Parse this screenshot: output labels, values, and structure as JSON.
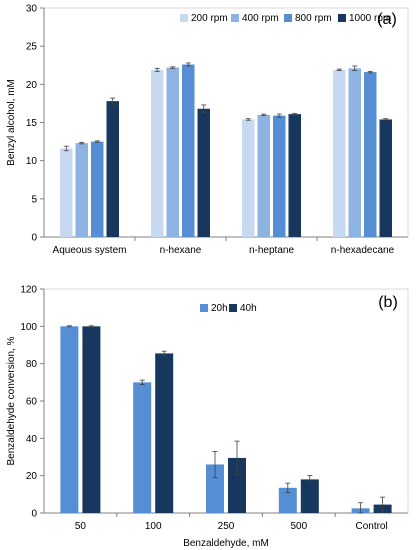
{
  "chart_data": [
    {
      "type": "bar",
      "panel_label": "(a)",
      "ylabel": "Benzyl alcohol, mM",
      "xlabel": "",
      "ylim": [
        0,
        30
      ],
      "yticks": [
        0,
        5,
        10,
        15,
        20,
        25,
        30
      ],
      "legend_position": "top-right",
      "categories": [
        "Aqueous system",
        "n-hexane",
        "n-heptane",
        "n-hexadecane"
      ],
      "series": [
        {
          "name": "200 rpm",
          "color": "#c6d9f0",
          "values": [
            11.6,
            21.9,
            15.4,
            21.9
          ],
          "errors": [
            0.3,
            0.2,
            0.1,
            0.1
          ]
        },
        {
          "name": "400 rpm",
          "color": "#8db3e2",
          "values": [
            12.3,
            22.2,
            16.0,
            22.1
          ],
          "errors": [
            0.1,
            0.1,
            0.1,
            0.3
          ]
        },
        {
          "name": "800 rpm",
          "color": "#558ed5",
          "values": [
            12.5,
            22.6,
            15.9,
            21.6
          ],
          "errors": [
            0.1,
            0.2,
            0.2,
            0.1
          ]
        },
        {
          "name": "1000 rpm",
          "color": "#17375e",
          "values": [
            17.8,
            16.8,
            16.1,
            15.4
          ],
          "errors": [
            0.4,
            0.5,
            0.1,
            0.1
          ]
        }
      ]
    },
    {
      "type": "bar",
      "panel_label": "(b)",
      "ylabel": "Benzaldehyde conversion, %",
      "xlabel": "Benzaldehyde, mM",
      "ylim": [
        0,
        120
      ],
      "yticks": [
        0,
        20,
        40,
        60,
        80,
        100,
        120
      ],
      "legend_position": "top-center",
      "categories": [
        "50",
        "100",
        "250",
        "500",
        "Control"
      ],
      "series": [
        {
          "name": "20h",
          "color": "#558ed5",
          "values": [
            100,
            70,
            26,
            13.5,
            2.5
          ],
          "errors": [
            0.3,
            1.2,
            7,
            2.5,
            3
          ]
        },
        {
          "name": "40h",
          "color": "#17375e",
          "values": [
            100,
            85.5,
            29.5,
            18,
            4.5
          ],
          "errors": [
            0.3,
            1.2,
            9,
            2,
            4
          ]
        }
      ]
    }
  ]
}
